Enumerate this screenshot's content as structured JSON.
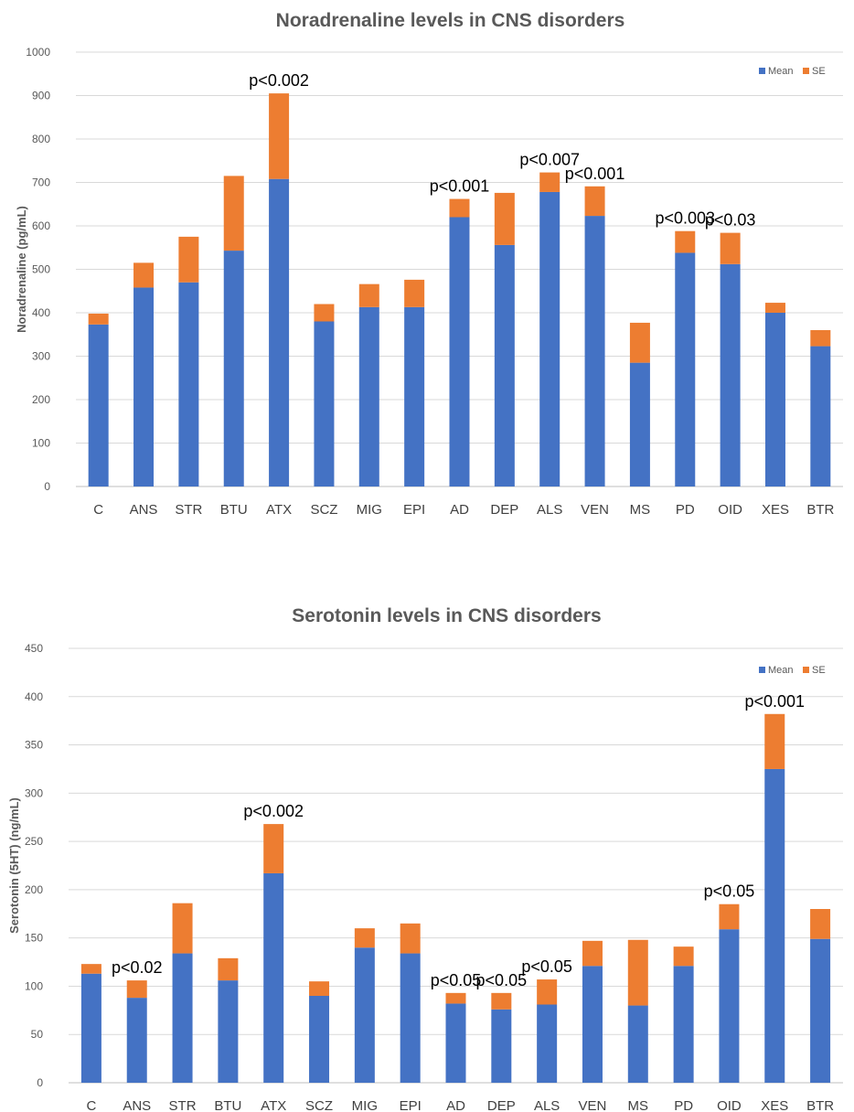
{
  "chart_data": [
    {
      "type": "bar",
      "stacked": true,
      "title": "Noradrenaline levels in CNS disorders",
      "ylabel": "Noradrenaline (pg/mL)",
      "xlabel": "",
      "ylim": [
        0,
        1000
      ],
      "yticks": [
        0,
        100,
        200,
        300,
        400,
        500,
        600,
        700,
        800,
        900,
        1000
      ],
      "grid": true,
      "legend_position": "top-right",
      "categories": [
        "C",
        "ANS",
        "STR",
        "BTU",
        "ATX",
        "SCZ",
        "MIG",
        "EPI",
        "AD",
        "DEP",
        "ALS",
        "VEN",
        "MS",
        "PD",
        "OID",
        "XES",
        "BTR"
      ],
      "series": [
        {
          "name": "Mean",
          "color": "#4472C4",
          "values": [
            373,
            458,
            470,
            543,
            708,
            380,
            413,
            413,
            620,
            556,
            678,
            623,
            285,
            538,
            512,
            400,
            323
          ]
        },
        {
          "name": "SE",
          "color": "#ED7D31",
          "values": [
            25,
            57,
            105,
            172,
            197,
            40,
            53,
            63,
            42,
            120,
            45,
            68,
            92,
            50,
            72,
            23,
            37
          ]
        }
      ],
      "annotations": [
        {
          "category": "ATX",
          "text": "p<0.002"
        },
        {
          "category": "AD",
          "text": "p<0.001"
        },
        {
          "category": "ALS",
          "text": "p<0.007"
        },
        {
          "category": "VEN",
          "text": "p<0.001"
        },
        {
          "category": "PD",
          "text": "p<0.003"
        },
        {
          "category": "OID",
          "text": "p<0.03"
        }
      ]
    },
    {
      "type": "bar",
      "stacked": true,
      "title": "Serotonin levels in CNS disorders",
      "ylabel": "Serotonin (5HT) (ng/mL)",
      "xlabel": "",
      "ylim": [
        0,
        450
      ],
      "yticks": [
        0,
        50,
        100,
        150,
        200,
        250,
        300,
        350,
        400,
        450
      ],
      "grid": true,
      "legend_position": "top-right",
      "categories": [
        "C",
        "ANS",
        "STR",
        "BTU",
        "ATX",
        "SCZ",
        "MIG",
        "EPI",
        "AD",
        "DEP",
        "ALS",
        "VEN",
        "MS",
        "PD",
        "OID",
        "XES",
        "BTR"
      ],
      "series": [
        {
          "name": "Mean",
          "color": "#4472C4",
          "values": [
            113,
            88,
            134,
            106,
            217,
            90,
            140,
            134,
            82,
            76,
            81,
            121,
            80,
            121,
            159,
            325,
            149
          ]
        },
        {
          "name": "SE",
          "color": "#ED7D31",
          "values": [
            10,
            18,
            52,
            23,
            51,
            15,
            20,
            31,
            11,
            17,
            26,
            26,
            68,
            20,
            26,
            57,
            31
          ]
        }
      ],
      "annotations": [
        {
          "category": "ANS",
          "text": "p<0.02"
        },
        {
          "category": "ATX",
          "text": "p<0.002"
        },
        {
          "category": "AD",
          "text": "p<0.05"
        },
        {
          "category": "DEP",
          "text": "p<0.05"
        },
        {
          "category": "ALS",
          "text": "p<0.05"
        },
        {
          "category": "OID",
          "text": "p<0.05"
        },
        {
          "category": "XES",
          "text": "p<0.001"
        }
      ]
    }
  ]
}
